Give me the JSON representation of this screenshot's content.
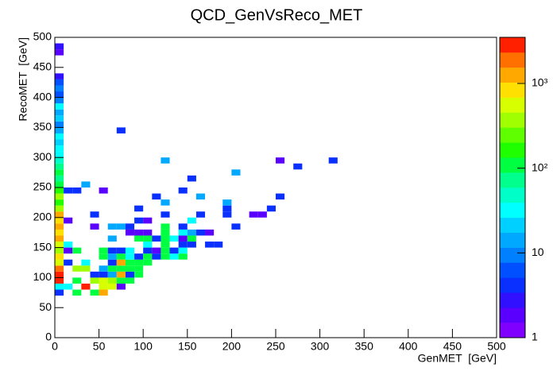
{
  "chart_data": {
    "type": "heatmap",
    "title": "QCD_GenVsReco_MET",
    "x_label": "GenMET  [GeV]",
    "y_label": "RecoMET  [GeV]",
    "xlim": [
      0,
      500
    ],
    "ylim": [
      0,
      500
    ],
    "xticks": [
      0,
      50,
      100,
      150,
      200,
      250,
      300,
      350,
      400,
      450,
      500
    ],
    "yticks": [
      0,
      50,
      100,
      150,
      200,
      250,
      300,
      350,
      400,
      450,
      500
    ],
    "bin_width": 10,
    "bin_height": 10,
    "zlim": [
      1,
      3500
    ],
    "z_log": true,
    "zticks": [
      1,
      10,
      {
        "value": 100,
        "label": "10²"
      },
      {
        "value": 1000,
        "label": "10³"
      }
    ],
    "palette": [
      "#8000ff",
      "#5a00ff",
      "#3010ff",
      "#0a30ff",
      "#0050ff",
      "#0080ff",
      "#00a8ff",
      "#00d0ff",
      "#00ffff",
      "#00ffc8",
      "#00ff8c",
      "#00ff40",
      "#20ff00",
      "#60ff00",
      "#a0ff00",
      "#d8ff00",
      "#ffe000",
      "#ffa800",
      "#ff7000",
      "#ff2000"
    ],
    "x": [
      0,
      0,
      0,
      0,
      0,
      0,
      0,
      0,
      0,
      0,
      0,
      0,
      0,
      0,
      0,
      0,
      0,
      0,
      0,
      0,
      0,
      0,
      0,
      0,
      0,
      0,
      0,
      0,
      0,
      0,
      0,
      0,
      0,
      0,
      0,
      0,
      0,
      0,
      0,
      20,
      40,
      50,
      10,
      30,
      50,
      60,
      70,
      20,
      40,
      50,
      60,
      70,
      80,
      40,
      50,
      60,
      70,
      80,
      90,
      20,
      30,
      50,
      60,
      70,
      80,
      90,
      10,
      30,
      60,
      70,
      80,
      90,
      100,
      50,
      60,
      70,
      80,
      90,
      100,
      110,
      120,
      130,
      140,
      10,
      20,
      50,
      60,
      70,
      80,
      100,
      110,
      120,
      130,
      140,
      10,
      100,
      120,
      140,
      150,
      170,
      180,
      60,
      90,
      100,
      110,
      120,
      130,
      140,
      150,
      80,
      90,
      100,
      120,
      140,
      150,
      160,
      170,
      40,
      60,
      70,
      80,
      120,
      140,
      200,
      10,
      90,
      100,
      150,
      40,
      120,
      160,
      190,
      220,
      230,
      90,
      190,
      240,
      120,
      190,
      110,
      160,
      250,
      10,
      20,
      50,
      140,
      30,
      150,
      200,
      270,
      120,
      250,
      310,
      70
    ],
    "y": [
      70,
      80,
      90,
      100,
      110,
      120,
      130,
      140,
      150,
      160,
      170,
      180,
      190,
      200,
      210,
      220,
      230,
      240,
      250,
      260,
      270,
      280,
      290,
      300,
      310,
      320,
      330,
      340,
      350,
      360,
      370,
      380,
      390,
      400,
      410,
      420,
      430,
      470,
      480,
      70,
      70,
      70,
      80,
      80,
      80,
      80,
      80,
      90,
      90,
      90,
      90,
      90,
      90,
      100,
      100,
      100,
      100,
      100,
      100,
      110,
      110,
      110,
      110,
      110,
      110,
      110,
      120,
      120,
      120,
      120,
      120,
      120,
      120,
      130,
      130,
      130,
      130,
      130,
      130,
      130,
      130,
      130,
      130,
      140,
      140,
      140,
      140,
      140,
      140,
      140,
      140,
      140,
      140,
      140,
      150,
      150,
      150,
      150,
      150,
      150,
      150,
      160,
      160,
      160,
      160,
      160,
      160,
      160,
      160,
      170,
      170,
      170,
      170,
      170,
      170,
      170,
      170,
      180,
      180,
      180,
      180,
      180,
      180,
      180,
      190,
      190,
      190,
      190,
      200,
      200,
      200,
      200,
      200,
      200,
      210,
      210,
      210,
      220,
      220,
      230,
      230,
      230,
      240,
      240,
      240,
      240,
      250,
      260,
      270,
      280,
      290,
      290,
      290,
      340
    ],
    "values": [
      4,
      30,
      2800,
      2800,
      1800,
      550,
      800,
      370,
      550,
      1200,
      800,
      1200,
      800,
      1200,
      370,
      160,
      370,
      160,
      110,
      70,
      110,
      70,
      50,
      30,
      30,
      20,
      30,
      13,
      8,
      20,
      13,
      30,
      8,
      6,
      8,
      6,
      3,
      2,
      3,
      120,
      120,
      1200,
      30,
      2800,
      600,
      600,
      2,
      120,
      370,
      600,
      370,
      120,
      120,
      5,
      5,
      15,
      1200,
      5,
      120,
      370,
      370,
      15,
      120,
      120,
      120,
      120,
      5,
      30,
      5,
      1200,
      120,
      120,
      120,
      120,
      15,
      120,
      30,
      5,
      120,
      5,
      120,
      30,
      120,
      2,
      120,
      120,
      5,
      5,
      30,
      5,
      2,
      120,
      5,
      30,
      30,
      30,
      120,
      5,
      5,
      5,
      5,
      15,
      120,
      120,
      5,
      120,
      30,
      2,
      120,
      2,
      2,
      2,
      120,
      30,
      15,
      5,
      2,
      2,
      15,
      15,
      5,
      120,
      5,
      5,
      2,
      5,
      2,
      30,
      5,
      5,
      5,
      5,
      2,
      2,
      5,
      5,
      5,
      15,
      15,
      5,
      15,
      5,
      5,
      5,
      2,
      5,
      15,
      5,
      15,
      5,
      15,
      2,
      5,
      5
    ]
  }
}
